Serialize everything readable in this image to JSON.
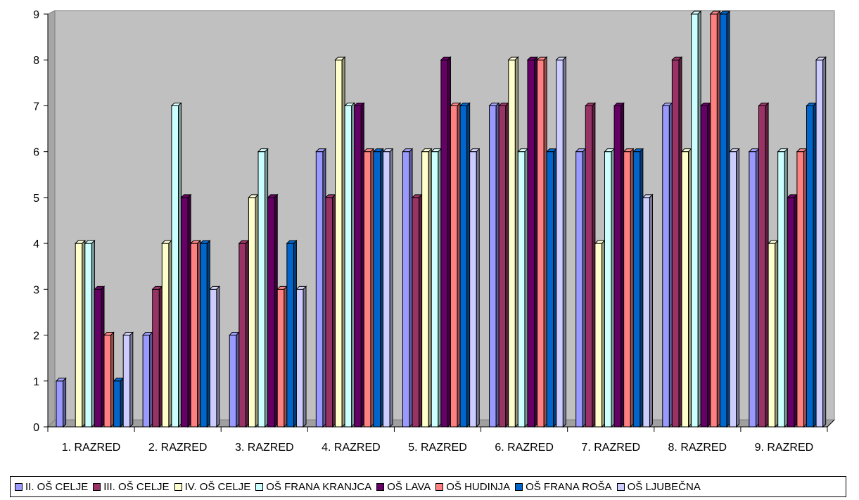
{
  "chart_data": {
    "type": "bar",
    "title": "",
    "xlabel": "",
    "ylabel": "",
    "ylim": [
      0,
      9
    ],
    "yticks": [
      "0",
      "1",
      "2",
      "3",
      "4",
      "5",
      "6",
      "7",
      "8",
      "9"
    ],
    "grid": false,
    "legend_position": "bottom",
    "categories": [
      "1. RAZRED",
      "2. RAZRED",
      "3. RAZRED",
      "4. RAZRED",
      "5. RAZRED",
      "6. RAZRED",
      "7. RAZRED",
      "8. RAZRED",
      "9. RAZRED"
    ],
    "series": [
      {
        "name": "II. OŠ CELJE",
        "color": "#9999ff",
        "values": [
          1,
          2,
          2,
          6,
          6,
          7,
          6,
          7,
          6
        ]
      },
      {
        "name": "III. OŠ CELJE",
        "color": "#993366",
        "values": [
          0,
          3,
          4,
          5,
          5,
          7,
          7,
          8,
          7
        ]
      },
      {
        "name": "IV. OŠ CELJE",
        "color": "#ffffcc",
        "values": [
          4,
          4,
          5,
          8,
          6,
          8,
          4,
          6,
          4
        ]
      },
      {
        "name": "OŠ FRANA KRANJCA",
        "color": "#ccffff",
        "values": [
          4,
          7,
          6,
          7,
          6,
          6,
          6,
          9,
          6
        ]
      },
      {
        "name": "OŠ LAVA",
        "color": "#660066",
        "values": [
          3,
          5,
          5,
          7,
          8,
          8,
          7,
          7,
          5
        ]
      },
      {
        "name": "OŠ HUDINJA",
        "color": "#ff8080",
        "values": [
          2,
          4,
          3,
          6,
          7,
          8,
          6,
          9,
          6
        ]
      },
      {
        "name": "OŠ FRANA ROŠA",
        "color": "#0066cc",
        "values": [
          1,
          4,
          4,
          6,
          7,
          6,
          6,
          9,
          7
        ]
      },
      {
        "name": "OŠ LJUBEČNA",
        "color": "#ccccff",
        "values": [
          2,
          3,
          3,
          6,
          6,
          8,
          5,
          6,
          8
        ]
      }
    ],
    "colors": {
      "plot_background": "#c0c0c0",
      "floor": "#c0c0c0"
    }
  }
}
